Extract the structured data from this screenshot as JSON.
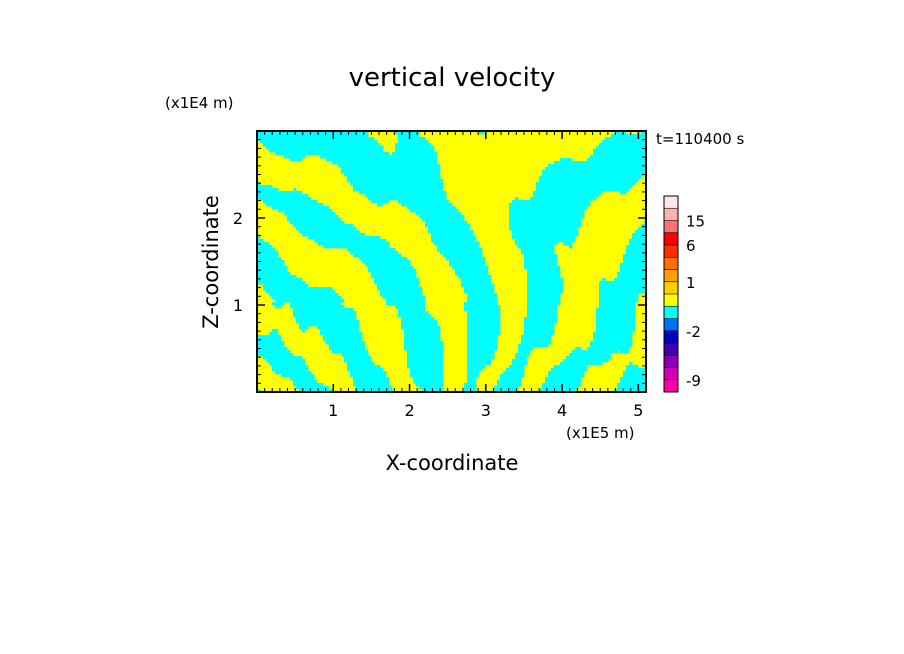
{
  "chart_data": {
    "type": "heatmap",
    "title": "vertical velocity",
    "xlabel": "X-coordinate",
    "ylabel": "Z-coordinate",
    "x_unit": "(x1E5 m)",
    "y_unit": "(x1E4 m)",
    "time_label": "t=110400 s",
    "xlim": [
      0,
      5.1
    ],
    "ylim": [
      0,
      3.0
    ],
    "x_ticks": [
      1,
      2,
      3,
      4,
      5
    ],
    "y_ticks": [
      1,
      2
    ],
    "field_colors": {
      "positive": "#ffff00",
      "negative": "#00ffff"
    },
    "colorbar": {
      "levels": [
        -12,
        -9,
        -6,
        -4,
        -3,
        -2,
        -1,
        -0.5,
        0.5,
        1,
        2,
        4,
        6,
        10,
        15,
        20,
        25
      ],
      "colors": [
        "#ff00a8",
        "#d000b0",
        "#8800b0",
        "#4000b0",
        "#0000c8",
        "#0070ff",
        "#00ffff",
        "#ffff00",
        "#ffd000",
        "#ffa000",
        "#ff7000",
        "#ff3000",
        "#ff0000",
        "#ff7070",
        "#ffb0b0",
        "#ffe6e6"
      ],
      "tick_labels": [
        {
          "value": -9,
          "label": "-9"
        },
        {
          "value": -2,
          "label": "-2"
        },
        {
          "value": 1,
          "label": "1"
        },
        {
          "value": 6,
          "label": "6"
        },
        {
          "value": 15,
          "label": "15"
        }
      ]
    }
  }
}
